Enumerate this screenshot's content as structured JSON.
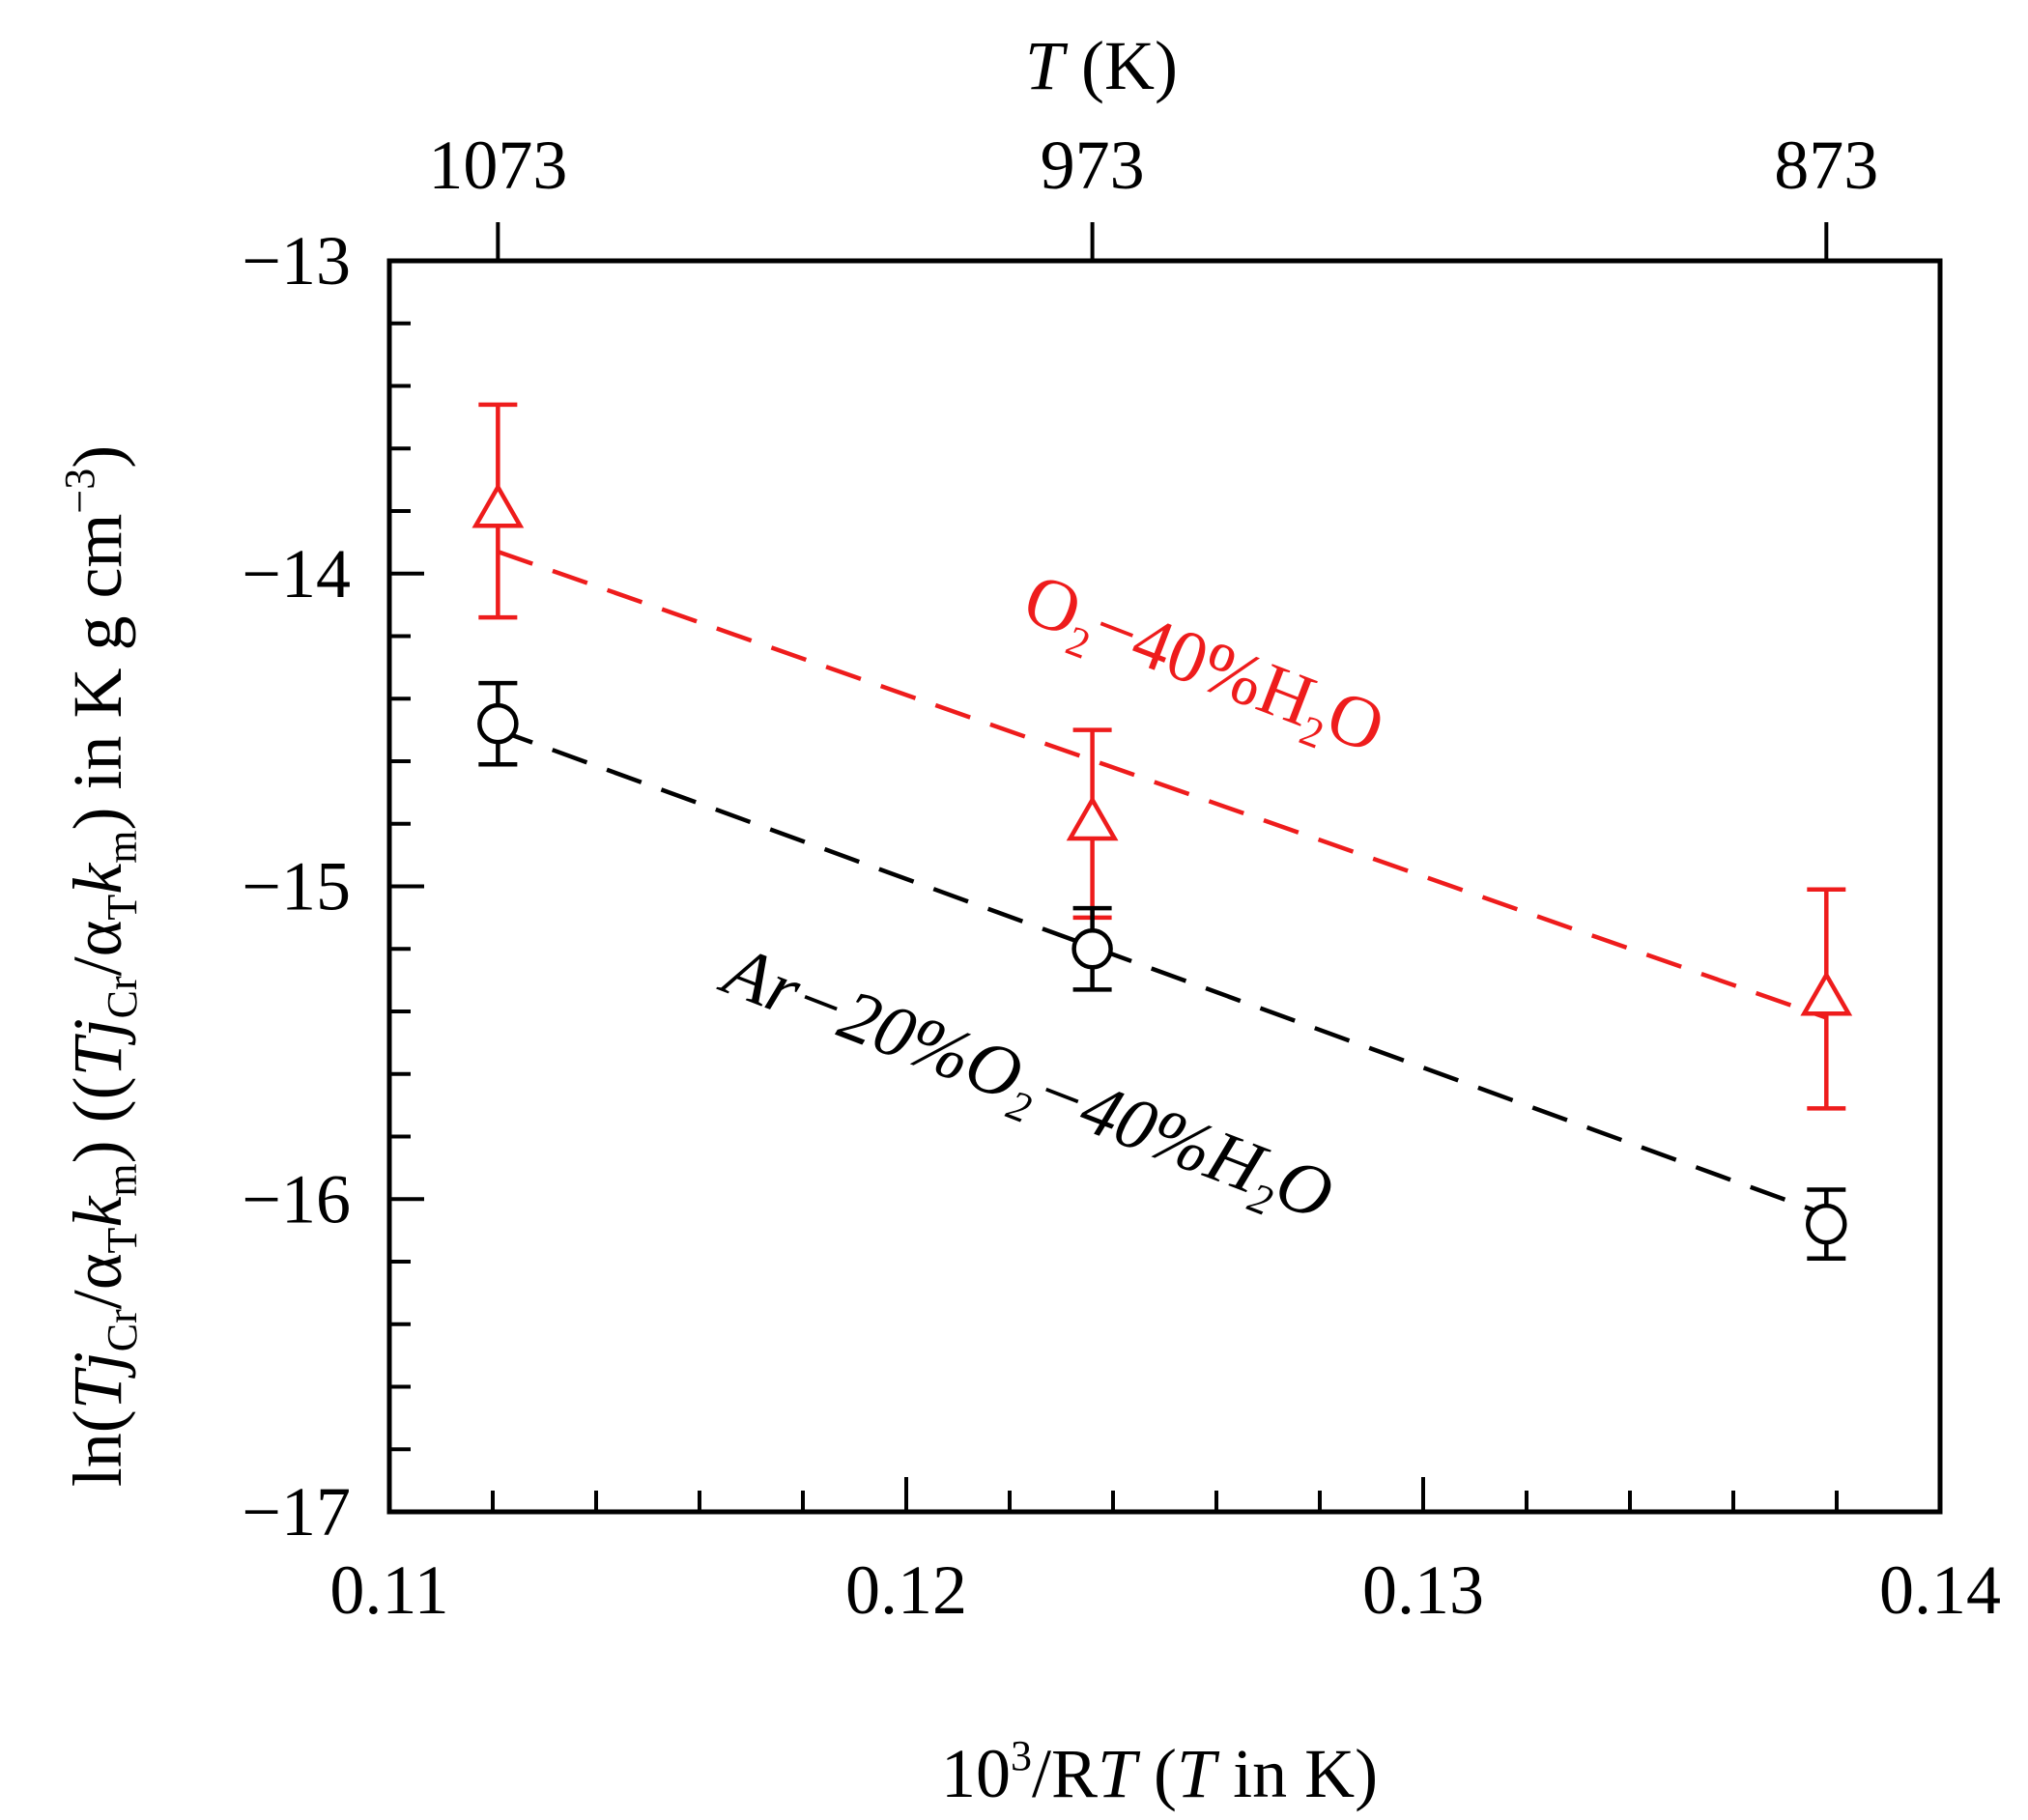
{
  "chart_data": {
    "type": "scatter",
    "title": "",
    "xlabel": {
      "main": "10",
      "sup": "3",
      "rest": "/R",
      "italic_T": "T",
      "paren_open": " (",
      "italic_T2": "T",
      "paren_rest": " in K)"
    },
    "ylabel": {
      "part1": "ln(",
      "T": "T",
      "j": "j",
      "sub_Cr": "Cr",
      "slash": "/",
      "alpha": "α",
      "sub_T": "T",
      "k": "k",
      "sub_m": "m",
      "close": ") ((",
      "T2": "T",
      "j2": "j",
      "sub_Cr2": "Cr",
      "slash2": "/",
      "alpha2": "α",
      "sub_T2": "T",
      "k2": "k",
      "sub_m2": "m",
      "tail": ") in K g  cm",
      "sup_neg3": "−3",
      "end": ")"
    },
    "top_axis": {
      "label_T": "T",
      "label_rest": " (K)",
      "ticks": [
        {
          "x": 0.1121,
          "label": "1073"
        },
        {
          "x": 0.1236,
          "label": "973"
        },
        {
          "x": 0.1378,
          "label": "873"
        }
      ]
    },
    "xlim": [
      0.11,
      0.14
    ],
    "ylim": [
      -17,
      -13
    ],
    "x_ticks": [
      {
        "value": 0.11,
        "label": "0.11"
      },
      {
        "value": 0.12,
        "label": "0.12"
      },
      {
        "value": 0.13,
        "label": "0.13"
      },
      {
        "value": 0.14,
        "label": "0.14"
      }
    ],
    "y_ticks": [
      {
        "value": -13,
        "label": "−13"
      },
      {
        "value": -14,
        "label": "−14"
      },
      {
        "value": -15,
        "label": "−15"
      },
      {
        "value": -16,
        "label": "−16"
      },
      {
        "value": -17,
        "label": "−17"
      }
    ],
    "series": [
      {
        "name": "O2−40%H2O",
        "label_parts": {
          "a": "O",
          "sub": "2",
          "b": "−40%H",
          "sub2": "2",
          "c": "O"
        },
        "color": "#ee1c1c",
        "marker": "triangle",
        "x": [
          0.1121,
          0.1236,
          0.1378
        ],
        "y": [
          -13.8,
          -14.8,
          -15.36
        ],
        "err_low": [
          0.34,
          0.3,
          0.35
        ],
        "err_high": [
          0.34,
          0.3,
          0.35
        ],
        "fit": {
          "x1": 0.1121,
          "y1": -13.93,
          "x2": 0.1378,
          "y2": -15.42
        }
      },
      {
        "name": "Ar−20%O2−40%H2O",
        "label_parts": {
          "a": "Ar−20%O",
          "sub": "2",
          "b": "−40%H",
          "sub2": "2",
          "c": "O"
        },
        "color": "#000000",
        "marker": "circle",
        "x": [
          0.1121,
          0.1236,
          0.1378
        ],
        "y": [
          -14.48,
          -15.2,
          -16.08
        ],
        "err_low": [
          0.13,
          0.13,
          0.11
        ],
        "err_high": [
          0.13,
          0.13,
          0.11
        ],
        "fit": {
          "x1": 0.1121,
          "y1": -14.5,
          "x2": 0.1378,
          "y2": -16.05
        }
      }
    ]
  }
}
